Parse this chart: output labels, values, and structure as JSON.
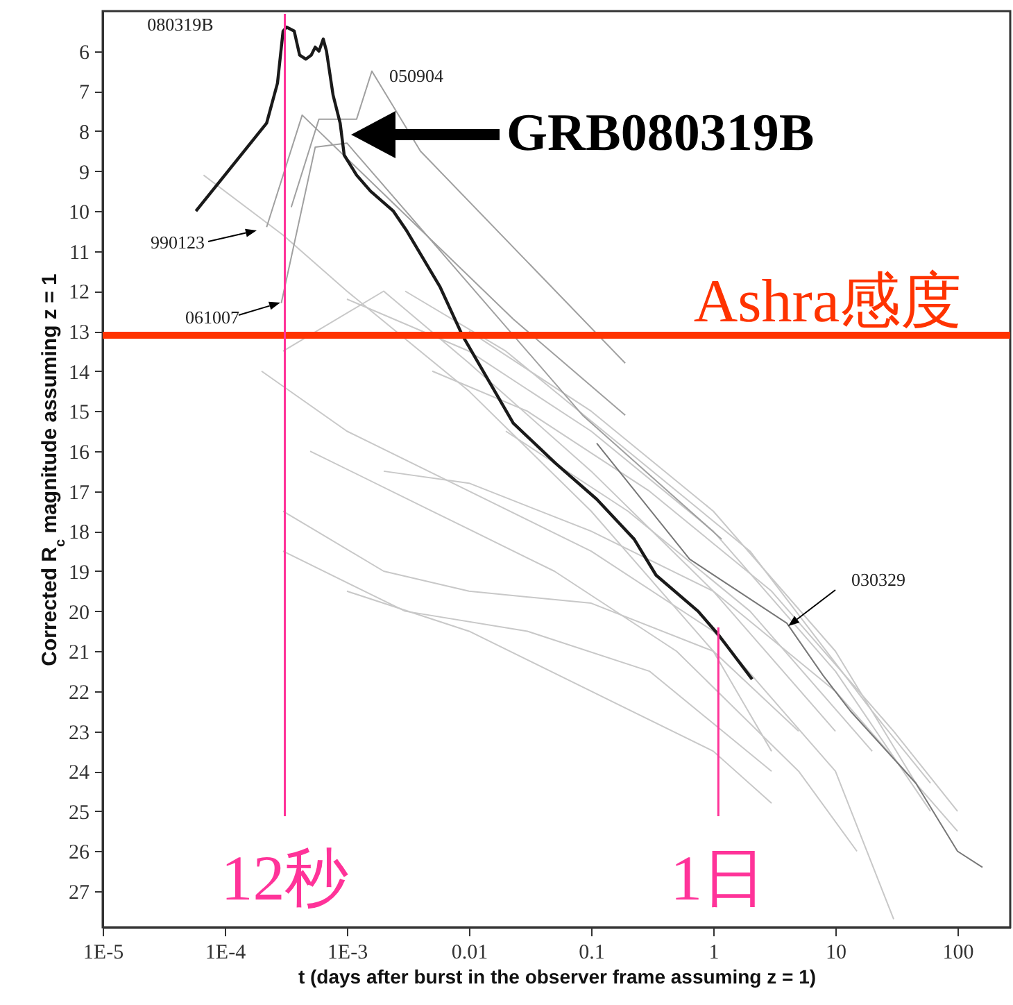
{
  "chart_data": {
    "type": "line",
    "xlabel": "t (days after burst in the observer frame assuming z = 1)",
    "ylabel": "Corrected R$_{c}$ magnitude assuming z = 1",
    "log": "x",
    "xlim": [
      1e-05,
      270
    ],
    "ylim": [
      27.9,
      5.0
    ],
    "xticks": [
      {
        "value": 1e-05,
        "label": "1E-5"
      },
      {
        "value": 0.0001,
        "label": "1E-4"
      },
      {
        "value": 0.001,
        "label": "1E-3"
      },
      0.01,
      0.1,
      1,
      10,
      100
    ],
    "yticks": [
      6,
      7,
      8,
      9,
      10,
      11,
      12,
      13,
      14,
      15,
      16,
      17,
      18,
      19,
      20,
      21,
      22,
      23,
      24,
      25,
      26,
      27
    ],
    "grid": false,
    "marker": "none",
    "line_style": "solid",
    "series": [
      {
        "color": "#c8c8c8",
        "x": [
          6.7e-05,
          0.0003,
          0.001,
          0.01,
          0.1,
          1,
          3
        ],
        "values": [
          9.1,
          10.6,
          12.0,
          14.5,
          17.5,
          21.0,
          23.5
        ]
      },
      {
        "color": "#c8c8c8",
        "x": [
          0.001,
          0.01,
          0.1,
          1,
          10,
          60
        ],
        "values": [
          12.2,
          13.5,
          15.5,
          18.0,
          21.5,
          25.0
        ]
      },
      {
        "color": "#c8c8c8",
        "x": [
          0.0003,
          0.002,
          0.01,
          0.1,
          1,
          10
        ],
        "values": [
          13.5,
          12.0,
          13.8,
          16.5,
          19.5,
          23.0
        ]
      },
      {
        "color": "#c8c8c8",
        "x": [
          0.0002,
          0.001,
          0.01,
          0.1,
          1,
          10,
          30
        ],
        "values": [
          14.0,
          15.5,
          17.0,
          18.5,
          20.5,
          24.0,
          27.7
        ]
      },
      {
        "color": "#c8c8c8",
        "x": [
          0.0003,
          0.002,
          0.01,
          0.1,
          1,
          5
        ],
        "values": [
          17.5,
          19.0,
          19.5,
          19.8,
          21.0,
          23.0
        ]
      },
      {
        "color": "#c8c8c8",
        "x": [
          0.0003,
          0.003,
          0.03,
          0.3,
          3
        ],
        "values": [
          18.5,
          20.0,
          20.5,
          21.5,
          24.0
        ]
      },
      {
        "color": "#c8c8c8",
        "x": [
          0.002,
          0.01,
          0.1,
          1,
          10,
          100
        ],
        "values": [
          16.5,
          16.8,
          18.0,
          19.5,
          22.0,
          25.5
        ]
      },
      {
        "color": "#c8c8c8",
        "x": [
          0.005,
          0.03,
          0.3,
          3,
          30,
          100
        ],
        "values": [
          14.0,
          15.0,
          17.0,
          19.5,
          23.0,
          25.0
        ]
      },
      {
        "color": "#c8c8c8",
        "x": [
          0.01,
          0.1,
          1,
          10,
          50
        ],
        "values": [
          13.0,
          15.0,
          17.5,
          21.0,
          24.5
        ]
      },
      {
        "color": "#c8c8c8",
        "x": [
          0.003,
          0.02,
          0.2,
          2,
          20,
          60
        ],
        "values": [
          12.0,
          13.5,
          16.0,
          18.5,
          22.5,
          24.3
        ]
      },
      {
        "color": "#c8c8c8",
        "x": [
          0.0005,
          0.005,
          0.05,
          0.5,
          5,
          15
        ],
        "values": [
          16.0,
          17.5,
          19.0,
          21.0,
          24.0,
          26.0
        ]
      },
      {
        "color": "#c8c8c8",
        "x": [
          0.02,
          0.2,
          2,
          20
        ],
        "values": [
          15.5,
          17.5,
          20.0,
          23.5
        ]
      },
      {
        "color": "#c8c8c8",
        "x": [
          0.001,
          0.01,
          0.1,
          1,
          3
        ],
        "values": [
          19.5,
          20.5,
          22.0,
          23.5,
          24.8
        ]
      },
      {
        "color": "#a0a0a0",
        "x": [
          0.00035,
          0.00059,
          0.0012,
          0.0016,
          0.004,
          0.19
        ],
        "values": [
          9.9,
          7.7,
          7.7,
          6.5,
          8.5,
          13.8
        ]
      },
      {
        "color": "#a0a0a0",
        "x": [
          0.00022,
          0.00043,
          0.023,
          0.19
        ],
        "values": [
          10.4,
          7.6,
          12.7,
          15.1
        ]
      },
      {
        "color": "#a0a0a0",
        "x": [
          0.00029,
          0.00055,
          0.001,
          0.085,
          1.17
        ],
        "values": [
          12.3,
          8.4,
          8.3,
          15.1,
          18.2
        ]
      },
      {
        "color": "#777777",
        "x": [
          0.111,
          0.64,
          4.0,
          7.9,
          13.3,
          45.6,
          100,
          160
        ],
        "values": [
          15.8,
          18.7,
          20.3,
          21.6,
          22.5,
          24.3,
          26.0,
          26.4
        ]
      },
      {
        "color": "#1a1a1a",
        "x": [
          5.8e-05,
          0.00022,
          0.00027,
          0.0003,
          0.00032,
          0.00037,
          0.00041,
          0.00046,
          0.00051,
          0.00055,
          0.00059,
          0.00064,
          0.00068,
          0.00077,
          0.00088,
          0.00095,
          0.0012,
          0.00156,
          0.0024,
          0.0031,
          0.0058,
          0.0088,
          0.023,
          0.051,
          0.111,
          0.225,
          0.34,
          0.75,
          1.11,
          2.08
        ],
        "values": [
          10.0,
          7.8,
          6.8,
          5.5,
          5.4,
          5.5,
          6.1,
          6.2,
          6.1,
          5.9,
          6.0,
          5.7,
          6.0,
          7.1,
          7.8,
          8.6,
          9.1,
          9.5,
          10.0,
          10.5,
          11.9,
          13.1,
          15.3,
          16.3,
          17.2,
          18.2,
          19.1,
          20.0,
          20.6,
          21.7
        ]
      }
    ],
    "ref_lines": [
      {
        "axis": "y",
        "value": 13.1,
        "label": "Ashra感度",
        "color": "#ff3300"
      },
      {
        "axis": "x",
        "value": 0.00031,
        "label": "12秒",
        "color": "#ff3399"
      },
      {
        "axis": "x",
        "value": 1.1,
        "label": "1日",
        "color": "#ff3399"
      }
    ],
    "annotations": [
      "080319B",
      "050904",
      "990123",
      "061007",
      "030329",
      "GRB080319B"
    ]
  }
}
